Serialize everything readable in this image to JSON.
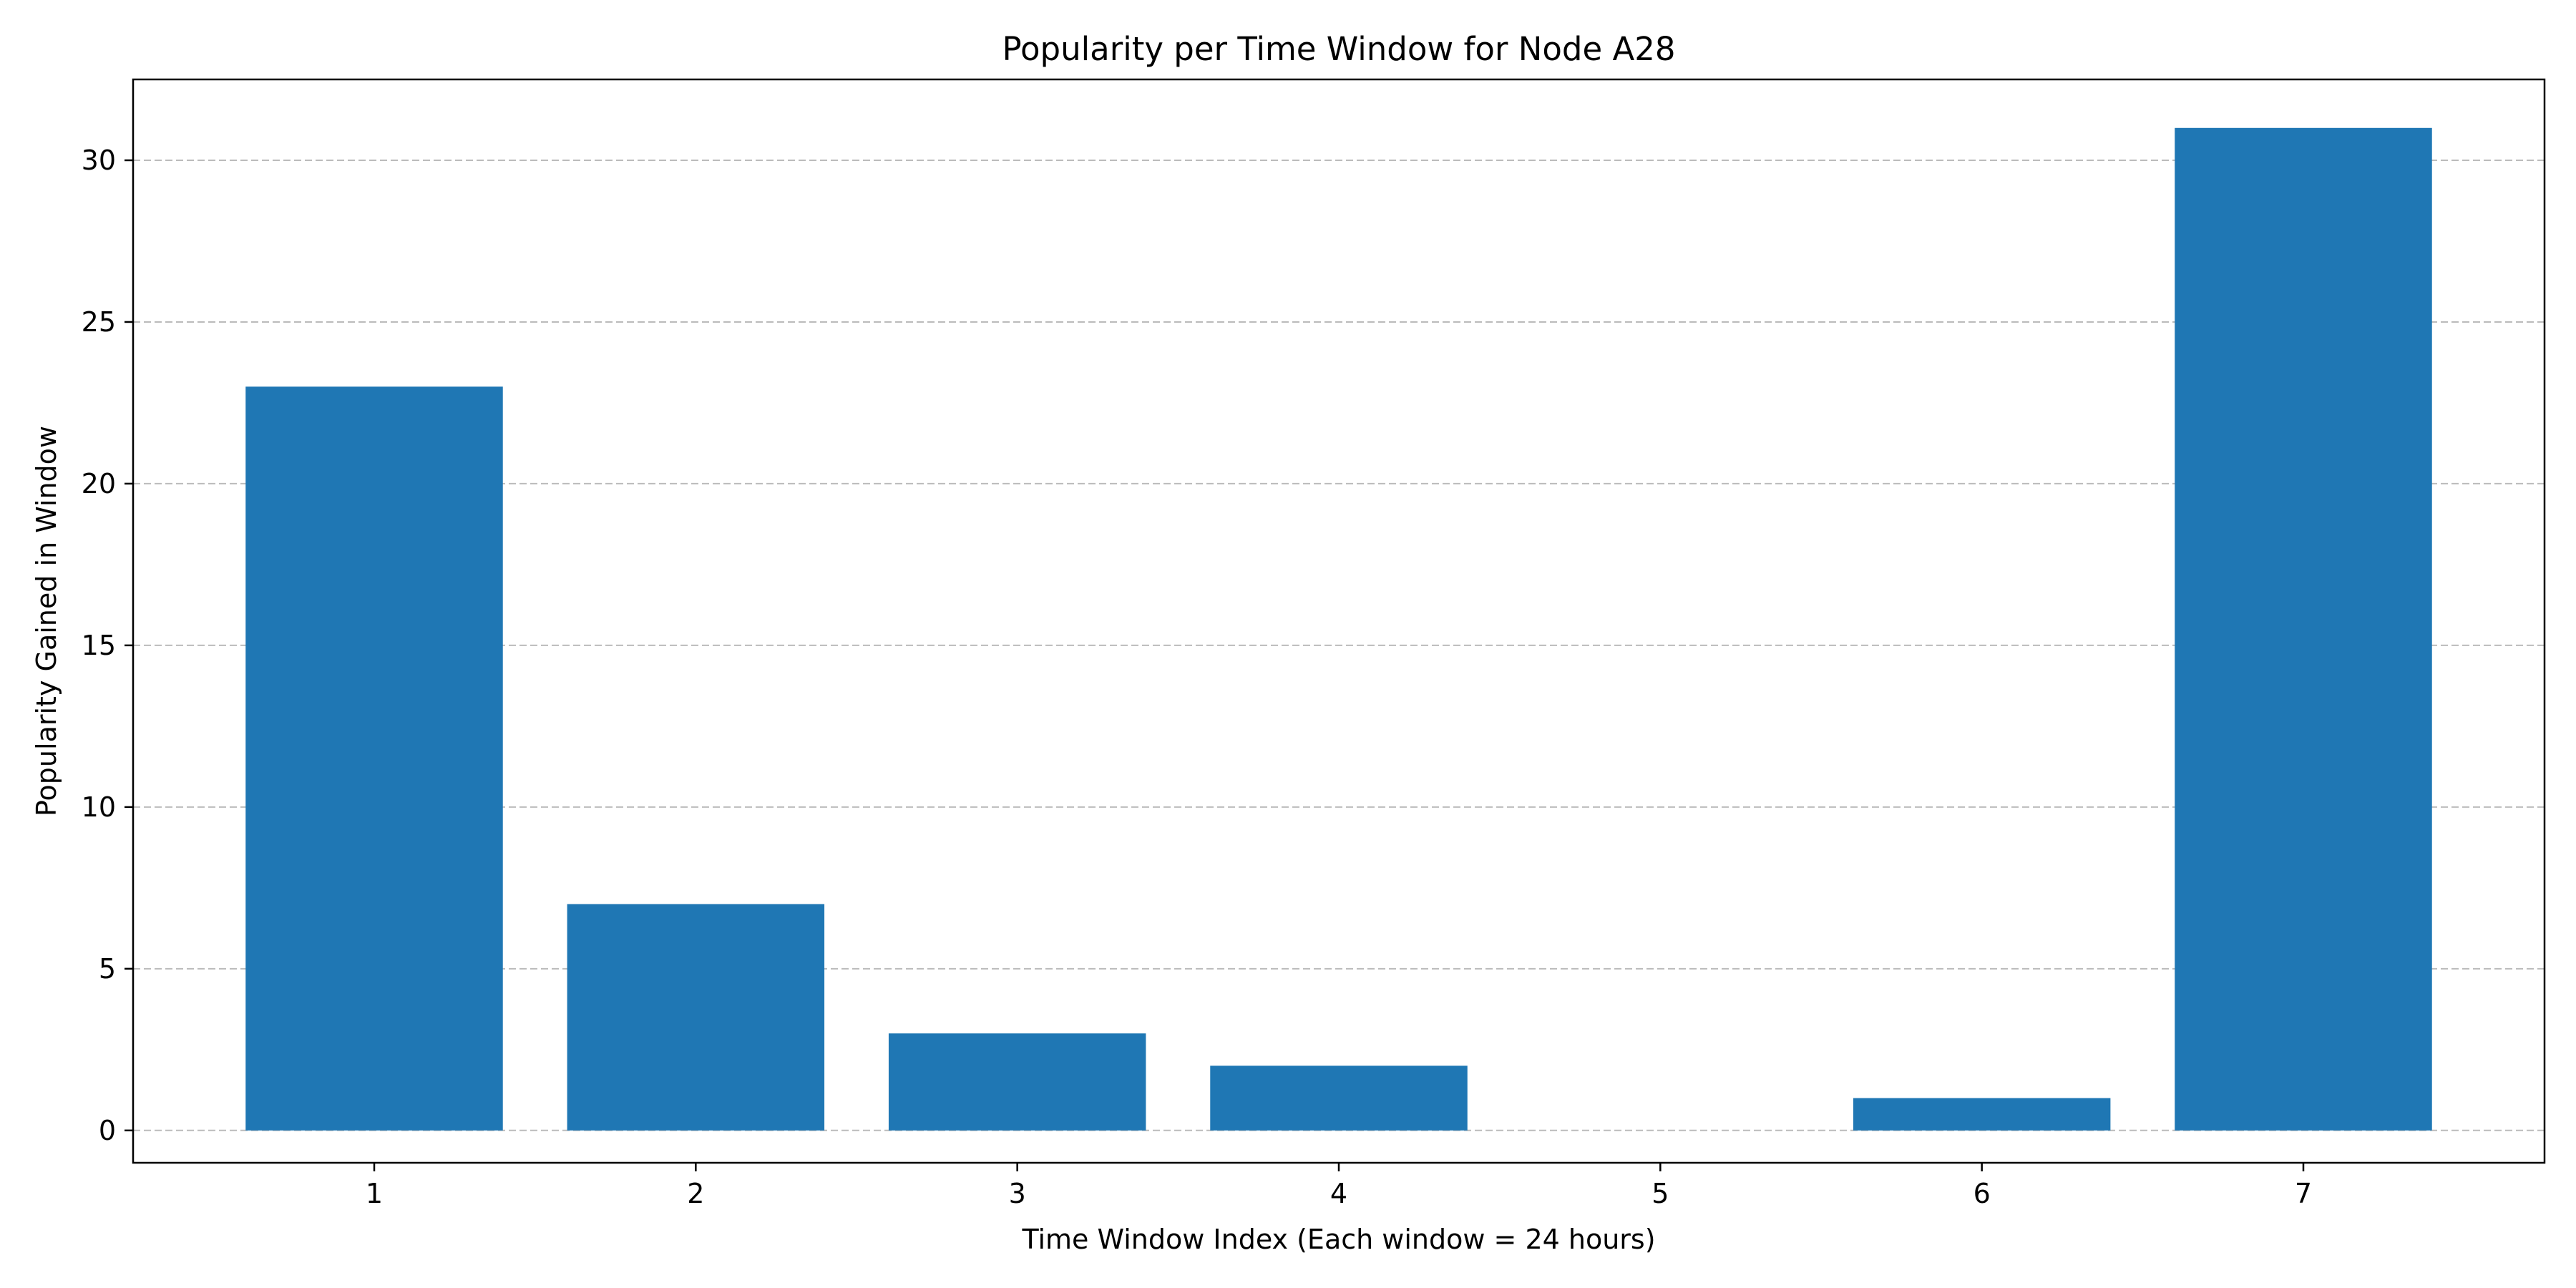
{
  "chart_data": {
    "type": "bar",
    "title": "Popularity per Time Window for Node A28",
    "xlabel": "Time Window Index (Each window = 24 hours)",
    "ylabel": "Popularity Gained in Window",
    "categories": [
      "1",
      "2",
      "3",
      "4",
      "5",
      "6",
      "7"
    ],
    "values": [
      23,
      7,
      3,
      2,
      0,
      1,
      31
    ],
    "xlim": [
      0.25,
      7.75
    ],
    "ylim": [
      -1,
      32.5
    ],
    "yticks": [
      0,
      5,
      10,
      15,
      20,
      25,
      30
    ],
    "bar_width": 0.8,
    "grid": {
      "axis": "y",
      "style": "dashed"
    },
    "legend": "none",
    "colors": {
      "bar": "#1f77b4",
      "grid": "#b0b0b0",
      "axes": "#000000"
    }
  }
}
